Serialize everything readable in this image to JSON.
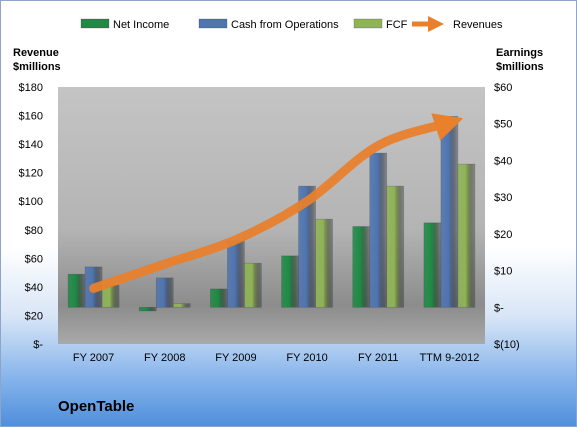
{
  "company_name": "OpenTable",
  "left_axis_title": [
    "Revenue",
    "$millions"
  ],
  "right_axis_title": [
    "Earnings",
    "$millions"
  ],
  "colors": {
    "net_income": "#1f8a45",
    "cash_from_operations": "#4f74b0",
    "fcf": "#8fb356",
    "revenues": "#e8802c"
  },
  "chart_data": {
    "type": "bar",
    "categories": [
      "FY 2007",
      "FY 2008",
      "FY 2009",
      "FY 2010",
      "FY 2011",
      "TTM 9-2012"
    ],
    "left_axis": {
      "ylim": [
        0,
        180
      ],
      "ticks": [
        "$-",
        "$20",
        "$40",
        "$60",
        "$80",
        "$100",
        "$120",
        "$140",
        "$160",
        "$180"
      ]
    },
    "right_axis": {
      "ylim": [
        -10,
        60
      ],
      "ticks": [
        "$(10)",
        "$-",
        "$10",
        "$20",
        "$30",
        "$40",
        "$50",
        "$60"
      ]
    },
    "series": [
      {
        "name": "Net Income",
        "axis": "right",
        "kind": "bar",
        "values": [
          9,
          -1,
          5,
          14,
          22,
          23
        ]
      },
      {
        "name": "Cash from Operations",
        "axis": "right",
        "kind": "bar",
        "values": [
          11,
          8,
          18,
          33,
          42,
          52
        ]
      },
      {
        "name": "FCF",
        "axis": "right",
        "kind": "bar",
        "values": [
          6,
          1,
          12,
          24,
          33,
          39
        ]
      },
      {
        "name": "Revenues",
        "axis": "left",
        "kind": "line",
        "values": [
          39,
          56,
          73,
          100,
          139,
          155
        ]
      }
    ],
    "grid": false,
    "legend": "top"
  }
}
